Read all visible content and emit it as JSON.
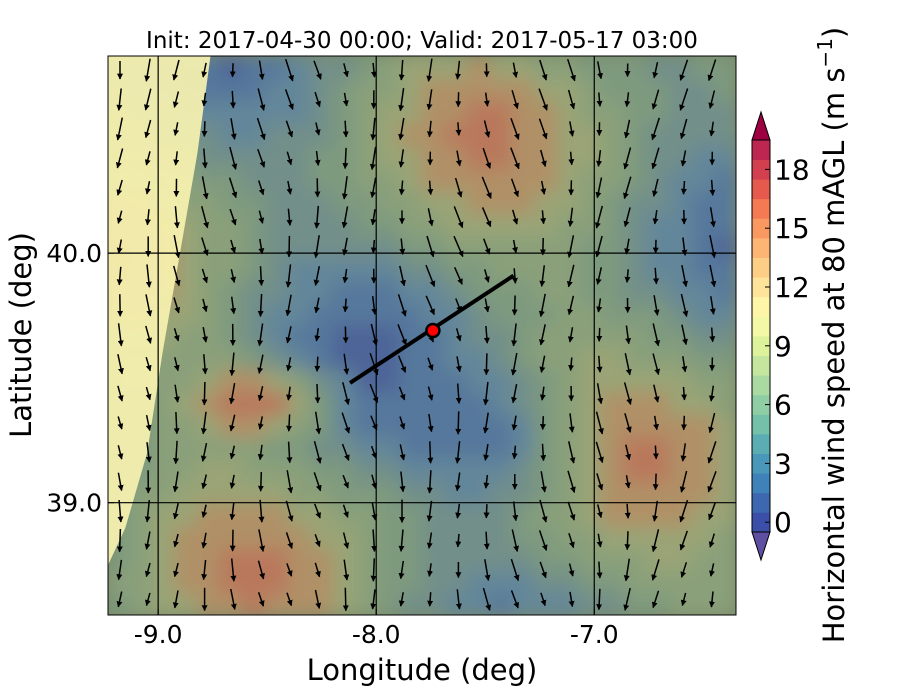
{
  "chart_data": {
    "type": "heatmap",
    "title": "Init: 2017-04-30 00:00; Valid: 2017-05-17 03:00",
    "xlabel": "Longitude (deg)",
    "ylabel": "Latitude (deg)",
    "xlim": [
      -9.23,
      -6.35
    ],
    "ylim": [
      38.55,
      40.79
    ],
    "x_ticks": [
      -9.0,
      -8.0,
      -7.0
    ],
    "x_tick_labels": [
      "-9.0",
      "-8.0",
      "-7.0"
    ],
    "y_ticks": [
      39.0,
      40.0
    ],
    "y_tick_labels": [
      "39.0",
      "40.0"
    ],
    "grid": true,
    "colorbar": {
      "label_main": "Horizontal wind speed at 80 mAGL (m s",
      "label_exp": "−1",
      "label_close": ")",
      "range": [
        0,
        20
      ],
      "step": 1,
      "extend": "both",
      "ticks": [
        0,
        3,
        6,
        9,
        12,
        15,
        18
      ],
      "tick_labels": [
        "0",
        "3",
        "6",
        "9",
        "12",
        "15",
        "18"
      ],
      "colors": [
        "#3b4fa8",
        "#3d68b0",
        "#3f82ba",
        "#4a98b9",
        "#5aadb2",
        "#74c0a8",
        "#8fcea4",
        "#aadaa2",
        "#c4e69f",
        "#def29c",
        "#f2f8a6",
        "#fef5a9",
        "#fee49a",
        "#fdcf86",
        "#fcb572",
        "#f99961",
        "#f47a53",
        "#e65a4d",
        "#d23f4f",
        "#bc2650"
      ],
      "under_color": "#5e4fa2",
      "over_color": "#9e0142"
    },
    "cross_section": {
      "start": [
        -8.12,
        39.48
      ],
      "end": [
        -7.37,
        39.91
      ],
      "point": [
        -7.74,
        39.69
      ],
      "line_color": "#000000",
      "point_color": "#ff0000"
    }
  }
}
